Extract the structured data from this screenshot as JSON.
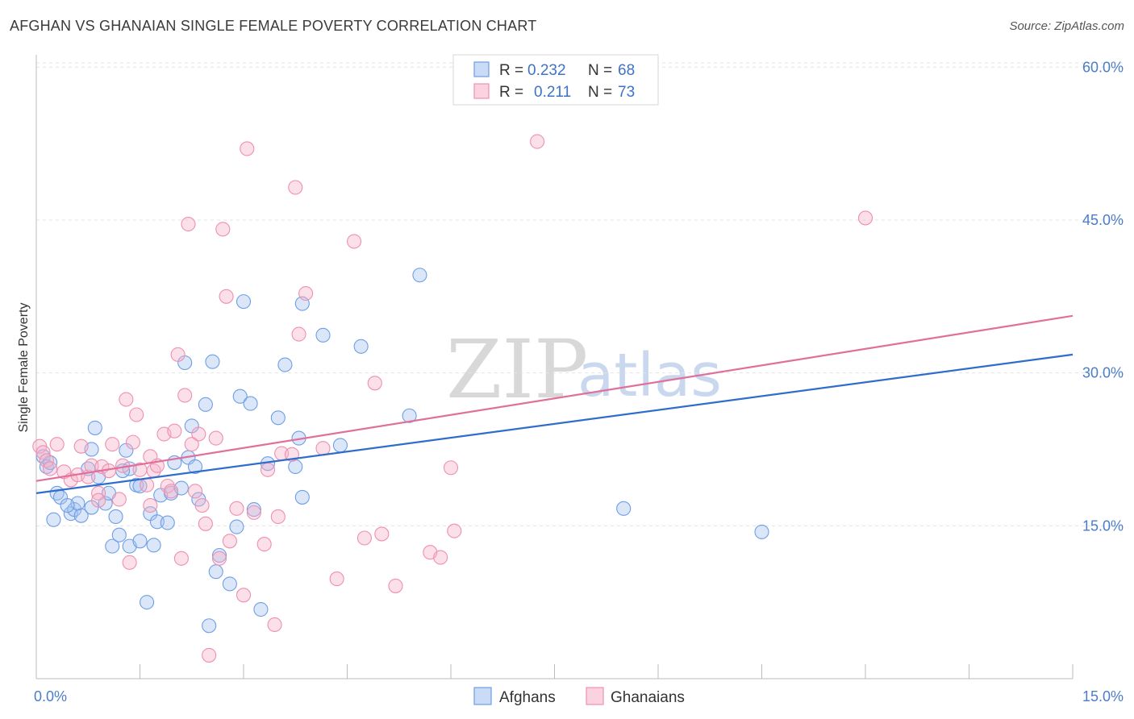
{
  "header": {
    "title": "AFGHAN VS GHANAIAN SINGLE FEMALE POVERTY CORRELATION CHART",
    "source": "Source: ZipAtlas.com"
  },
  "watermark": {
    "part1": "ZIP",
    "part2": "atlas"
  },
  "legend_top": {
    "rows": [
      {
        "r_label": "R =",
        "r_value": "0.232",
        "n_label": "N =",
        "n_value": "68",
        "color": "#6d9ee6"
      },
      {
        "r_label": "R =",
        "r_value": "0.211",
        "n_label": "N =",
        "n_value": "73",
        "color": "#ef8fb0"
      }
    ]
  },
  "legend_bottom": {
    "items": [
      {
        "label": "Afghans",
        "color": "#6d9ee6"
      },
      {
        "label": "Ghanaians",
        "color": "#ef8fb0"
      }
    ]
  },
  "chart_data": {
    "type": "scatter",
    "title": "AFGHAN VS GHANAIAN SINGLE FEMALE POVERTY CORRELATION CHART",
    "xlabel": "",
    "ylabel": "Single Female Poverty",
    "xlim": [
      0,
      15
    ],
    "ylim": [
      0,
      62
    ],
    "x_tick_labels": [
      {
        "value": 0,
        "label": "0.0%"
      },
      {
        "value": 15,
        "label": "15.0%"
      }
    ],
    "y_tick_labels": [
      {
        "value": 15,
        "label": "15.0%"
      },
      {
        "value": 30,
        "label": "30.0%"
      },
      {
        "value": 45,
        "label": "45.0%"
      },
      {
        "value": 60,
        "label": "60.0%"
      }
    ],
    "grid": true,
    "legend_position": "top-center",
    "series": [
      {
        "name": "Afghans",
        "color": "#6d9ee6",
        "line_color": "#2f6dcc",
        "trend": {
          "x": [
            0,
            15
          ],
          "y": [
            18.2,
            31.8
          ]
        },
        "points": [
          [
            0.1,
            21.8
          ],
          [
            0.15,
            20.8
          ],
          [
            0.2,
            21.2
          ],
          [
            0.25,
            15.6
          ],
          [
            0.3,
            18.2
          ],
          [
            0.35,
            17.8
          ],
          [
            0.5,
            16.2
          ],
          [
            0.55,
            16.6
          ],
          [
            0.6,
            17.2
          ],
          [
            0.65,
            16.0
          ],
          [
            0.75,
            20.6
          ],
          [
            0.8,
            22.5
          ],
          [
            0.85,
            24.6
          ],
          [
            0.9,
            19.8
          ],
          [
            1.0,
            17.2
          ],
          [
            1.05,
            18.2
          ],
          [
            1.1,
            13.0
          ],
          [
            1.15,
            15.9
          ],
          [
            1.2,
            14.1
          ],
          [
            1.3,
            22.4
          ],
          [
            1.35,
            20.6
          ],
          [
            1.35,
            13.0
          ],
          [
            1.45,
            19.0
          ],
          [
            1.5,
            18.9
          ],
          [
            1.5,
            13.5
          ],
          [
            1.6,
            7.5
          ],
          [
            1.65,
            16.2
          ],
          [
            1.7,
            13.1
          ],
          [
            1.75,
            15.4
          ],
          [
            1.8,
            18.0
          ],
          [
            1.9,
            15.3
          ],
          [
            1.95,
            18.2
          ],
          [
            2.0,
            21.2
          ],
          [
            2.1,
            18.7
          ],
          [
            2.15,
            31.0
          ],
          [
            2.2,
            21.7
          ],
          [
            2.25,
            24.8
          ],
          [
            2.3,
            20.8
          ],
          [
            2.35,
            17.6
          ],
          [
            2.45,
            26.9
          ],
          [
            2.5,
            5.2
          ],
          [
            2.55,
            31.1
          ],
          [
            2.6,
            10.5
          ],
          [
            2.65,
            12.1
          ],
          [
            2.8,
            9.3
          ],
          [
            2.9,
            14.9
          ],
          [
            2.95,
            27.7
          ],
          [
            3.0,
            37.0
          ],
          [
            3.1,
            27.0
          ],
          [
            3.15,
            16.6
          ],
          [
            3.25,
            6.8
          ],
          [
            3.35,
            21.1
          ],
          [
            3.5,
            25.6
          ],
          [
            3.6,
            30.8
          ],
          [
            3.75,
            20.8
          ],
          [
            3.8,
            23.6
          ],
          [
            3.85,
            17.8
          ],
          [
            3.85,
            36.8
          ],
          [
            4.15,
            33.7
          ],
          [
            4.4,
            22.9
          ],
          [
            4.7,
            32.6
          ],
          [
            5.4,
            25.8
          ],
          [
            5.55,
            39.6
          ],
          [
            8.5,
            16.7
          ],
          [
            10.5,
            14.4
          ],
          [
            0.8,
            16.8
          ],
          [
            0.45,
            17.0
          ],
          [
            1.25,
            20.4
          ]
        ]
      },
      {
        "name": "Ghanaians",
        "color": "#ef8fb0",
        "line_color": "#e0709a",
        "trend": {
          "x": [
            0,
            15
          ],
          "y": [
            19.4,
            35.6
          ]
        },
        "points": [
          [
            0.05,
            22.8
          ],
          [
            0.1,
            22.2
          ],
          [
            0.15,
            21.4
          ],
          [
            0.2,
            20.6
          ],
          [
            0.3,
            23.0
          ],
          [
            0.4,
            20.3
          ],
          [
            0.5,
            19.5
          ],
          [
            0.6,
            20.0
          ],
          [
            0.65,
            22.8
          ],
          [
            0.75,
            19.8
          ],
          [
            0.8,
            20.9
          ],
          [
            0.9,
            18.2
          ],
          [
            0.95,
            20.8
          ],
          [
            1.05,
            20.4
          ],
          [
            1.1,
            23.0
          ],
          [
            1.2,
            17.6
          ],
          [
            1.25,
            20.9
          ],
          [
            1.3,
            27.4
          ],
          [
            1.35,
            11.4
          ],
          [
            1.4,
            23.2
          ],
          [
            1.45,
            25.9
          ],
          [
            1.5,
            20.5
          ],
          [
            1.6,
            19.0
          ],
          [
            1.65,
            17.0
          ],
          [
            1.7,
            20.4
          ],
          [
            1.75,
            20.9
          ],
          [
            1.85,
            24.0
          ],
          [
            1.9,
            18.9
          ],
          [
            1.95,
            18.4
          ],
          [
            2.0,
            24.3
          ],
          [
            2.05,
            31.8
          ],
          [
            2.1,
            11.8
          ],
          [
            2.15,
            27.8
          ],
          [
            2.2,
            44.6
          ],
          [
            2.3,
            18.4
          ],
          [
            2.35,
            24.0
          ],
          [
            2.4,
            17.0
          ],
          [
            2.45,
            15.2
          ],
          [
            2.5,
            2.3
          ],
          [
            2.6,
            23.6
          ],
          [
            2.65,
            11.8
          ],
          [
            2.7,
            44.1
          ],
          [
            2.75,
            37.5
          ],
          [
            2.8,
            13.5
          ],
          [
            2.9,
            16.7
          ],
          [
            3.0,
            8.2
          ],
          [
            3.05,
            52.0
          ],
          [
            3.15,
            16.3
          ],
          [
            3.3,
            13.2
          ],
          [
            3.35,
            20.5
          ],
          [
            3.45,
            5.3
          ],
          [
            3.5,
            15.9
          ],
          [
            3.55,
            22.1
          ],
          [
            3.7,
            22.0
          ],
          [
            3.75,
            48.2
          ],
          [
            3.8,
            33.8
          ],
          [
            3.9,
            37.8
          ],
          [
            4.15,
            22.6
          ],
          [
            4.35,
            9.8
          ],
          [
            4.6,
            42.9
          ],
          [
            4.75,
            13.8
          ],
          [
            4.9,
            29.0
          ],
          [
            5.0,
            14.2
          ],
          [
            5.2,
            9.1
          ],
          [
            5.7,
            12.4
          ],
          [
            5.85,
            11.9
          ],
          [
            6.0,
            20.7
          ],
          [
            6.05,
            14.5
          ],
          [
            7.25,
            52.7
          ],
          [
            12.0,
            45.2
          ],
          [
            0.9,
            17.5
          ],
          [
            2.25,
            23.0
          ],
          [
            1.65,
            21.8
          ]
        ]
      }
    ]
  }
}
